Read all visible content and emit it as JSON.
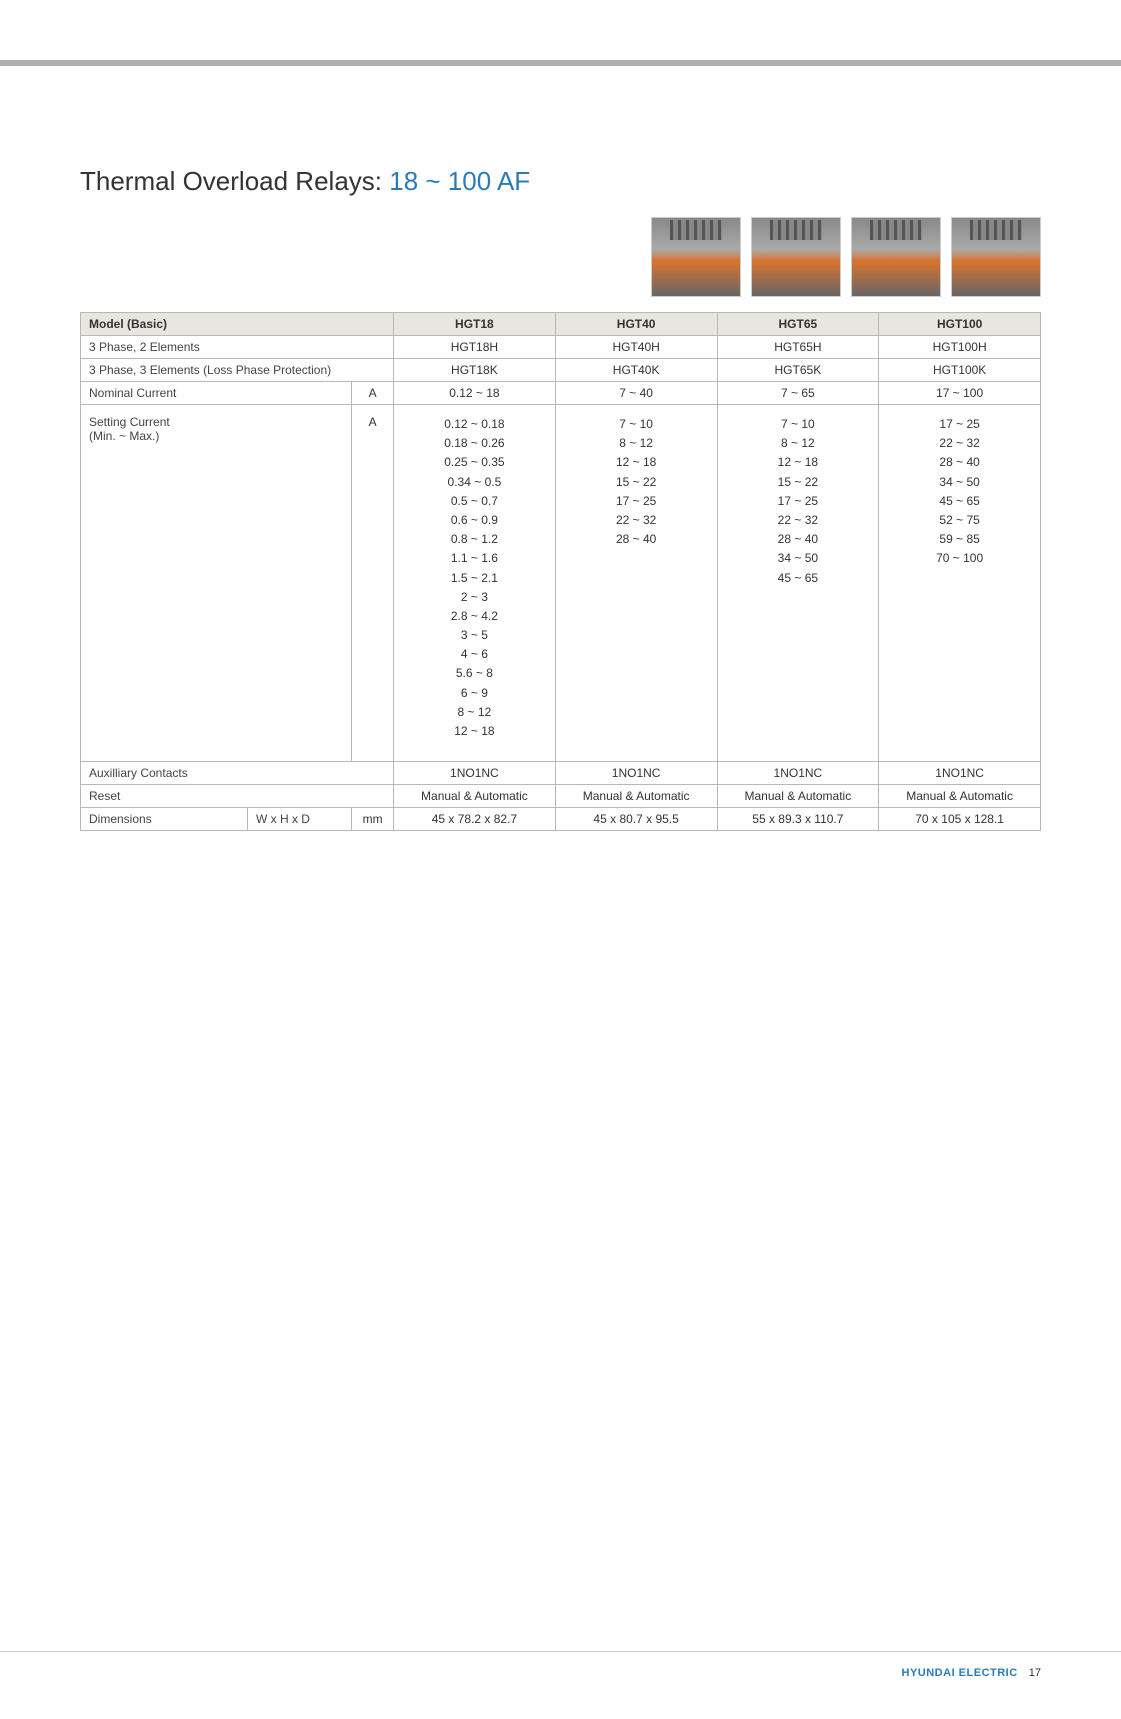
{
  "title": {
    "prefix": "Thermal Overload Relays: ",
    "range": "18 ~ 100 AF"
  },
  "colors": {
    "accent": "#2b7bb9",
    "header_bg": "#e8e6e0",
    "border": "#b8b8b8"
  },
  "columns": [
    "HGT18",
    "HGT40",
    "HGT65",
    "HGT100"
  ],
  "rows": {
    "model_basic_label": "Model (Basic)",
    "phase2_label": "3 Phase, 2 Elements",
    "phase2": [
      "HGT18H",
      "HGT40H",
      "HGT65H",
      "HGT100H"
    ],
    "phase3_label": "3 Phase, 3 Elements (Loss Phase Protection)",
    "phase3": [
      "HGT18K",
      "HGT40K",
      "HGT65K",
      "HGT100K"
    ],
    "nominal_label": "Nominal Current",
    "nominal_unit": "A",
    "nominal": [
      "0.12 ~ 18",
      "7 ~ 40",
      "7 ~ 65",
      "17 ~ 100"
    ],
    "setting_label": "Setting Current\n(Min. ~ Max.)",
    "setting_unit": "A",
    "setting": [
      "0.12 ~ 0.18\n0.18 ~ 0.26\n0.25 ~ 0.35\n0.34 ~ 0.5\n0.5 ~ 0.7\n0.6 ~ 0.9\n0.8 ~ 1.2\n1.1 ~ 1.6\n1.5 ~ 2.1\n2 ~ 3\n2.8 ~ 4.2\n3 ~ 5\n4 ~ 6\n5.6 ~ 8\n6 ~ 9\n8 ~ 12\n12 ~ 18",
      "7 ~ 10\n8 ~ 12\n12 ~ 18\n15 ~ 22\n17 ~ 25\n22 ~ 32\n28 ~ 40",
      "7 ~ 10\n8 ~ 12\n12 ~ 18\n15 ~ 22\n17 ~ 25\n22 ~ 32\n28 ~ 40\n34 ~ 50\n45 ~ 65",
      "17 ~ 25\n22 ~ 32\n28 ~ 40\n34 ~ 50\n45 ~ 65\n52 ~ 75\n59 ~ 85\n70 ~ 100"
    ],
    "aux_label": "Auxilliary Contacts",
    "aux": [
      "1NO1NC",
      "1NO1NC",
      "1NO1NC",
      "1NO1NC"
    ],
    "reset_label": "Reset",
    "reset": [
      "Manual & Automatic",
      "Manual & Automatic",
      "Manual & Automatic",
      "Manual & Automatic"
    ],
    "dim_label": "Dimensions",
    "dim_sub": "W x H x D",
    "dim_unit": "mm",
    "dim": [
      "45 x 78.2 x 82.7",
      "45 x 80.7 x 95.5",
      "55 x 89.3 x 110.7",
      "70 x 105 x 128.1"
    ]
  },
  "footer": {
    "brand": "HYUNDAI ELECTRIC",
    "page": "17"
  }
}
